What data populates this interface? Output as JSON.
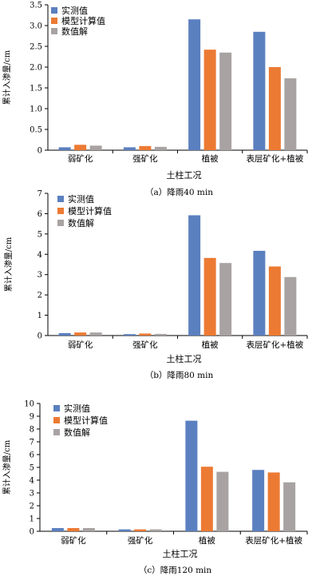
{
  "colors": {
    "measured": "#5b80c0",
    "model": "#ec7a33",
    "numeric": "#a8a3a2"
  },
  "chart_data": [
    {
      "type": "bar",
      "caption": "（a）降雨40 min",
      "categories": [
        "弱矿化",
        "强矿化",
        "植被",
        "表层矿化+植被"
      ],
      "xlabel": "土柱工况",
      "ylabel": "累计入渗量/cm",
      "ylim": [
        0,
        3.5
      ],
      "yticks": [
        "0",
        "0.5",
        "1.0",
        "1.5",
        "2.0",
        "2.5",
        "3.0",
        "3.5"
      ],
      "series": [
        {
          "name": "实测值",
          "values": [
            0.07,
            0.07,
            3.15,
            2.85
          ]
        },
        {
          "name": "模型计算值",
          "values": [
            0.13,
            0.1,
            2.42,
            2.0
          ]
        },
        {
          "name": "数值解",
          "values": [
            0.11,
            0.08,
            2.35,
            1.73
          ]
        }
      ]
    },
    {
      "type": "bar",
      "caption": "（b）降雨80 min",
      "categories": [
        "弱矿化",
        "强矿化",
        "植被",
        "表层矿化+植被"
      ],
      "xlabel": "土柱工况",
      "ylabel": "累计入渗量/cm",
      "ylim": [
        0,
        7
      ],
      "yticks": [
        "0",
        "1",
        "2",
        "3",
        "4",
        "5",
        "6",
        "7"
      ],
      "series": [
        {
          "name": "实测值",
          "values": [
            0.12,
            0.07,
            5.92,
            4.17
          ]
        },
        {
          "name": "模型计算值",
          "values": [
            0.15,
            0.1,
            3.82,
            3.4
          ]
        },
        {
          "name": "数值解",
          "values": [
            0.15,
            0.08,
            3.57,
            2.88
          ]
        }
      ]
    },
    {
      "type": "bar",
      "caption": "（c）降雨120 min",
      "categories": [
        "弱矿化",
        "强矿化",
        "植被",
        "表层矿化+植被"
      ],
      "xlabel": "土柱工况",
      "ylabel": "累计入渗量/cm",
      "ylim": [
        0,
        10
      ],
      "yticks": [
        "0",
        "1",
        "2",
        "3",
        "4",
        "5",
        "6",
        "7",
        "8",
        "9",
        "10"
      ],
      "series": [
        {
          "name": "实测值",
          "values": [
            0.25,
            0.15,
            8.65,
            4.8
          ]
        },
        {
          "name": "模型计算值",
          "values": [
            0.25,
            0.15,
            5.05,
            4.6
          ]
        },
        {
          "name": "数值解",
          "values": [
            0.25,
            0.15,
            4.65,
            3.83
          ]
        }
      ]
    }
  ]
}
